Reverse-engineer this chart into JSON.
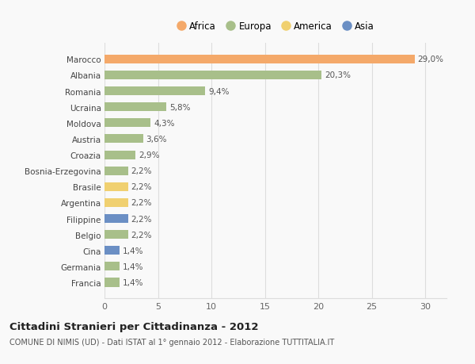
{
  "categories": [
    "Francia",
    "Germania",
    "Cina",
    "Belgio",
    "Filippine",
    "Argentina",
    "Brasile",
    "Bosnia-Erzegovina",
    "Croazia",
    "Austria",
    "Moldova",
    "Ucraina",
    "Romania",
    "Albania",
    "Marocco"
  ],
  "values": [
    1.4,
    1.4,
    1.4,
    2.2,
    2.2,
    2.2,
    2.2,
    2.2,
    2.9,
    3.6,
    4.3,
    5.8,
    9.4,
    20.3,
    29.0
  ],
  "labels": [
    "1,4%",
    "1,4%",
    "1,4%",
    "2,2%",
    "2,2%",
    "2,2%",
    "2,2%",
    "2,2%",
    "2,9%",
    "3,6%",
    "4,3%",
    "5,8%",
    "9,4%",
    "20,3%",
    "29,0%"
  ],
  "continents": [
    "Europa",
    "Europa",
    "Asia",
    "Europa",
    "Asia",
    "America",
    "America",
    "Europa",
    "Europa",
    "Europa",
    "Europa",
    "Europa",
    "Europa",
    "Europa",
    "Africa"
  ],
  "colors": {
    "Africa": "#F4A96A",
    "Europa": "#A8BF8A",
    "America": "#F0D070",
    "Asia": "#6B8FC4"
  },
  "legend_order": [
    "Africa",
    "Europa",
    "America",
    "Asia"
  ],
  "xlim": [
    0,
    32
  ],
  "xticks": [
    0,
    5,
    10,
    15,
    20,
    25,
    30
  ],
  "title": "Cittadini Stranieri per Cittadinanza - 2012",
  "subtitle": "COMUNE DI NIMIS (UD) - Dati ISTAT al 1° gennaio 2012 - Elaborazione TUTTITALIA.IT",
  "background_color": "#f9f9f9",
  "bar_height": 0.55,
  "grid_color": "#dddddd"
}
